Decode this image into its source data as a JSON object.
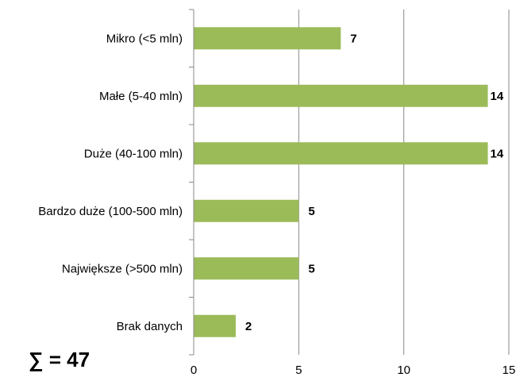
{
  "chart_data": {
    "type": "bar",
    "orientation": "horizontal",
    "categories": [
      "Mikro (<5 mln)",
      "Małe (5-40 mln)",
      "Duże (40-100 mln)",
      "Bardzo duże (100-500 mln)",
      "Największe (>500 mln)",
      "Brak danych"
    ],
    "values": [
      7,
      14,
      14,
      5,
      5,
      2
    ],
    "data_labels": [
      "7",
      "14",
      "14",
      "5",
      "5",
      "2"
    ],
    "x_ticks": [
      "0",
      "5",
      "10",
      "15"
    ],
    "xlim": [
      0,
      15
    ],
    "grid": "vertical",
    "bar_color": "#9bbb59",
    "title": "",
    "xlabel": "",
    "ylabel": ""
  },
  "summary": {
    "total_label": "∑ = 47"
  }
}
